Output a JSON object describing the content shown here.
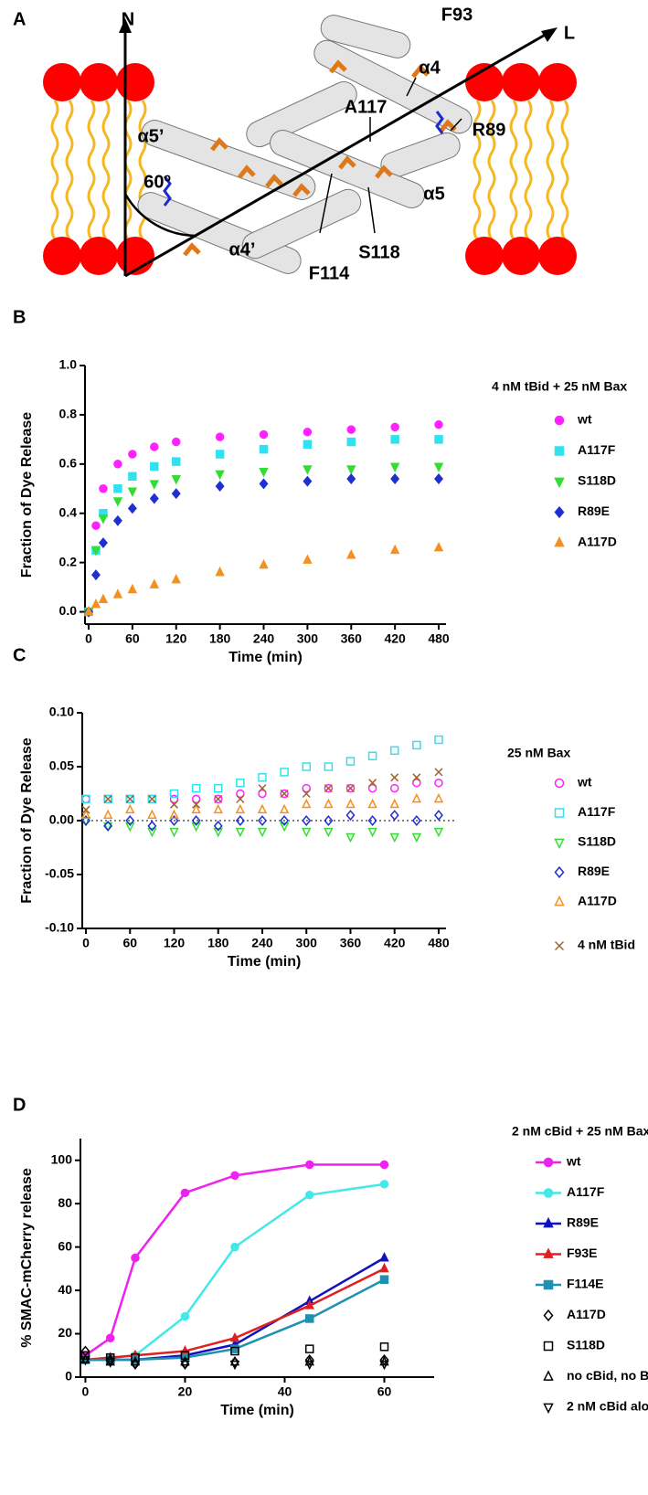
{
  "diagram": {
    "panel": "A",
    "labels": [
      "N",
      "L",
      "F93",
      "α4",
      "A117",
      "R89",
      "α5’",
      "60º",
      "α5",
      "S118",
      "F114",
      "α4’"
    ]
  },
  "chart_data": [
    {
      "type": "scatter",
      "panel": "B",
      "x_label": "Time (min)",
      "y_label": "Fraction of Dye Release",
      "legend_title": "4 nM tBid + 25 nM Bax",
      "x": [
        0,
        10,
        20,
        40,
        60,
        90,
        120,
        180,
        240,
        300,
        360,
        420,
        480
      ],
      "series": [
        {
          "name": "wt",
          "color": "#ff22ff",
          "marker": "circle",
          "filled": true,
          "values": [
            0,
            0.35,
            0.5,
            0.6,
            0.64,
            0.67,
            0.69,
            0.71,
            0.72,
            0.73,
            0.74,
            0.75,
            0.76
          ]
        },
        {
          "name": "A117F",
          "color": "#33e0f0",
          "marker": "square",
          "filled": true,
          "values": [
            0,
            0.25,
            0.4,
            0.5,
            0.55,
            0.59,
            0.61,
            0.64,
            0.66,
            0.68,
            0.69,
            0.7,
            0.7
          ]
        },
        {
          "name": "S118D",
          "color": "#33dd33",
          "marker": "triangle-down",
          "filled": true,
          "values": [
            0,
            0.25,
            0.38,
            0.45,
            0.49,
            0.52,
            0.54,
            0.56,
            0.57,
            0.58,
            0.58,
            0.59,
            0.59
          ]
        },
        {
          "name": "R89E",
          "color": "#1f2fd0",
          "marker": "diamond",
          "filled": true,
          "values": [
            0,
            0.15,
            0.28,
            0.37,
            0.42,
            0.46,
            0.48,
            0.51,
            0.52,
            0.53,
            0.54,
            0.54,
            0.54
          ]
        },
        {
          "name": "A117D",
          "color": "#f39020",
          "marker": "triangle",
          "filled": true,
          "values": [
            0,
            0.03,
            0.05,
            0.07,
            0.09,
            0.11,
            0.13,
            0.16,
            0.19,
            0.21,
            0.23,
            0.25,
            0.26
          ]
        }
      ],
      "xlim": [
        -5,
        490
      ],
      "xticks": [
        0,
        60,
        120,
        180,
        240,
        300,
        360,
        420,
        480
      ],
      "ylim": [
        -0.05,
        1.0
      ],
      "yticks": [
        {
          "value": 0,
          "label": "0.0"
        },
        0.2,
        0.4,
        0.6,
        0.8,
        {
          "value": 1,
          "label": "1.0"
        }
      ],
      "zero_line": false
    },
    {
      "type": "scatter",
      "panel": "C",
      "x_label": "Time (min)",
      "y_label": "Fraction of Dye Release",
      "legend_title": "25 nM Bax",
      "x": [
        0,
        30,
        60,
        90,
        120,
        150,
        180,
        210,
        240,
        270,
        300,
        330,
        360,
        390,
        420,
        450,
        480
      ],
      "series": [
        {
          "name": "wt",
          "color": "#ff22ff",
          "marker": "circle",
          "filled": false,
          "values": [
            0.02,
            0.02,
            0.02,
            0.02,
            0.02,
            0.02,
            0.02,
            0.025,
            0.025,
            0.025,
            0.03,
            0.03,
            0.03,
            0.03,
            0.03,
            0.035,
            0.035
          ]
        },
        {
          "name": "A117F",
          "color": "#33e0f0",
          "marker": "square",
          "filled": false,
          "values": [
            0.02,
            0.02,
            0.02,
            0.02,
            0.025,
            0.03,
            0.03,
            0.035,
            0.04,
            0.045,
            0.05,
            0.05,
            0.055,
            0.06,
            0.065,
            0.07,
            0.075
          ]
        },
        {
          "name": "S118D",
          "color": "#33dd33",
          "marker": "triangle-down",
          "filled": false,
          "values": [
            0,
            -0.005,
            -0.005,
            -0.01,
            -0.01,
            -0.005,
            -0.01,
            -0.01,
            -0.01,
            -0.005,
            -0.01,
            -0.01,
            -0.015,
            -0.01,
            -0.015,
            -0.015,
            -0.01
          ]
        },
        {
          "name": "R89E",
          "color": "#1f2fd0",
          "marker": "diamond",
          "filled": false,
          "values": [
            0,
            -0.005,
            0,
            -0.005,
            0,
            0,
            -0.005,
            0,
            0,
            0,
            0,
            0,
            0.005,
            0,
            0.005,
            0,
            0.005
          ]
        },
        {
          "name": "A117D",
          "color": "#f39020",
          "marker": "triangle",
          "filled": false,
          "values": [
            0.005,
            0.005,
            0.01,
            0.005,
            0.005,
            0.01,
            0.01,
            0.01,
            0.01,
            0.01,
            0.015,
            0.015,
            0.015,
            0.015,
            0.015,
            0.02,
            0.02
          ]
        },
        {
          "name": "4 nM tBid",
          "color": "#a0622d",
          "marker": "cross",
          "filled": false,
          "values": [
            0.01,
            0.02,
            0.02,
            0.02,
            0.015,
            0.015,
            0.02,
            0.02,
            0.03,
            0.025,
            0.025,
            0.03,
            0.03,
            0.035,
            0.04,
            0.04,
            0.045
          ]
        }
      ],
      "xlim": [
        -5,
        490
      ],
      "xticks": [
        0,
        60,
        120,
        180,
        240,
        300,
        360,
        420,
        480
      ],
      "ylim": [
        -0.1,
        0.1
      ],
      "yticks": [
        {
          "value": -0.1,
          "label": "-0.10"
        },
        {
          "value": -0.05,
          "label": "-0.05"
        },
        {
          "value": 0,
          "label": "0.00"
        },
        {
          "value": 0.05,
          "label": "0.05"
        },
        {
          "value": 0.1,
          "label": "0.10"
        }
      ],
      "zero_line": true
    },
    {
      "type": "line",
      "panel": "D",
      "x_label": "Time (min)",
      "y_label": "% SMAC-mCherry release",
      "legend_title": "2 nM cBid + 25 nM Bax",
      "x": [
        0,
        5,
        10,
        20,
        30,
        45,
        60
      ],
      "series": [
        {
          "name": "wt",
          "color": "#ee22ee",
          "marker": "circle",
          "filled": true,
          "line": true,
          "values": [
            10,
            18,
            55,
            85,
            93,
            98,
            98
          ]
        },
        {
          "name": "A117F",
          "color": "#44e8e8",
          "marker": "circle",
          "filled": true,
          "line": true,
          "values": [
            8,
            9,
            10,
            28,
            60,
            84,
            89
          ]
        },
        {
          "name": "R89E",
          "color": "#1010c0",
          "marker": "triangle",
          "filled": true,
          "line": true,
          "values": [
            8,
            8,
            8,
            10,
            15,
            35,
            55
          ]
        },
        {
          "name": "F93E",
          "color": "#e02020",
          "marker": "triangle",
          "filled": true,
          "line": true,
          "values": [
            8,
            9,
            10,
            12,
            18,
            33,
            50
          ]
        },
        {
          "name": "F114E",
          "color": "#2090b0",
          "marker": "square",
          "filled": true,
          "line": true,
          "values": [
            8,
            8,
            8,
            9,
            13,
            27,
            45
          ]
        },
        {
          "name": "A117D",
          "color": "#000000",
          "marker": "diamond",
          "filled": false,
          "line": false,
          "values": [
            12,
            8,
            6,
            6,
            7,
            8,
            8
          ]
        },
        {
          "name": "S118D",
          "color": "#000000",
          "marker": "square",
          "filled": false,
          "line": false,
          "values": [
            10,
            9,
            9,
            10,
            12,
            13,
            14
          ]
        },
        {
          "name": "no cBid, no Bax",
          "color": "#000000",
          "marker": "triangle",
          "filled": false,
          "line": false,
          "values": [
            8,
            7,
            7,
            7,
            7,
            7,
            7
          ]
        },
        {
          "name": "2 nM cBid alone",
          "color": "#000000",
          "marker": "triangle-down",
          "filled": false,
          "line": false,
          "values": [
            8,
            7,
            6,
            6,
            6,
            6,
            6
          ]
        }
      ],
      "xlim": [
        -1,
        70
      ],
      "xticks": [
        0,
        20,
        40,
        60
      ],
      "ylim": [
        0,
        110
      ],
      "yticks": [
        0,
        20,
        40,
        60,
        80,
        100
      ],
      "zero_line": false
    }
  ]
}
